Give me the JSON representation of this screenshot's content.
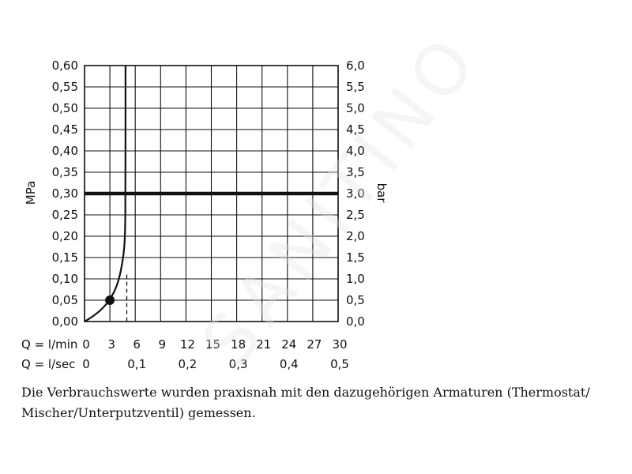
{
  "chart_data": {
    "type": "line",
    "ylabel_left": "MPa",
    "ylabel_right": "bar",
    "left_axis": {
      "ylim": [
        0,
        0.6
      ],
      "ticks": [
        "0,00",
        "0,05",
        "0,10",
        "0,15",
        "0,20",
        "0,25",
        "0,30",
        "0,35",
        "0,40",
        "0,45",
        "0,50",
        "0,55",
        "0,60"
      ]
    },
    "right_axis": {
      "ylim": [
        0,
        6
      ],
      "ticks": [
        "0,0",
        "0,5",
        "1,0",
        "1,5",
        "2,0",
        "2,5",
        "3,0",
        "3,5",
        "4,0",
        "4,5",
        "5,0",
        "5,5",
        "6,0"
      ]
    },
    "x_axis": {
      "unit": "l/min",
      "xlim": [
        0,
        30
      ],
      "row1_label": "Q = l/min",
      "row1_ticks": [
        {
          "value": 0,
          "label": "0"
        },
        {
          "value": 3,
          "label": "3"
        },
        {
          "value": 6,
          "label": "6"
        },
        {
          "value": 9,
          "label": "9"
        },
        {
          "value": 12,
          "label": "12"
        },
        {
          "value": 15,
          "label": "15"
        },
        {
          "value": 18,
          "label": "18"
        },
        {
          "value": 21,
          "label": "21"
        },
        {
          "value": 24,
          "label": "24"
        },
        {
          "value": 27,
          "label": "27"
        },
        {
          "value": 30,
          "label": "30"
        }
      ],
      "row2_label": "Q = l/sec",
      "row2_ticks": [
        {
          "value": 0,
          "label": "0"
        },
        {
          "value": 6,
          "label": "0,1"
        },
        {
          "value": 12,
          "label": "0,2"
        },
        {
          "value": 18,
          "label": "0,3"
        },
        {
          "value": 24,
          "label": "0,4"
        },
        {
          "value": 30,
          "label": "0,5"
        }
      ]
    },
    "grid": true,
    "series": [
      {
        "points": [
          [
            0,
            0
          ],
          [
            1,
            0.012
          ],
          [
            2,
            0.028
          ],
          [
            3,
            0.05
          ],
          [
            4,
            0.09
          ],
          [
            4.6,
            0.15
          ],
          [
            4.8,
            0.2
          ],
          [
            4.85,
            0.3
          ],
          [
            4.85,
            0.6
          ]
        ]
      }
    ],
    "marker_point": [
      3,
      0.05
    ],
    "reference_hline": 0.3,
    "dashed_vline": {
      "x": 5.0,
      "y_top": 0.11
    }
  },
  "caption": "Die Verbrauchswerte wurden praxisnah mit den dazugehörigen Armaturen (Thermostat/ Mischer/Unterputzventil) gemessen.",
  "watermark": "SANITINO"
}
